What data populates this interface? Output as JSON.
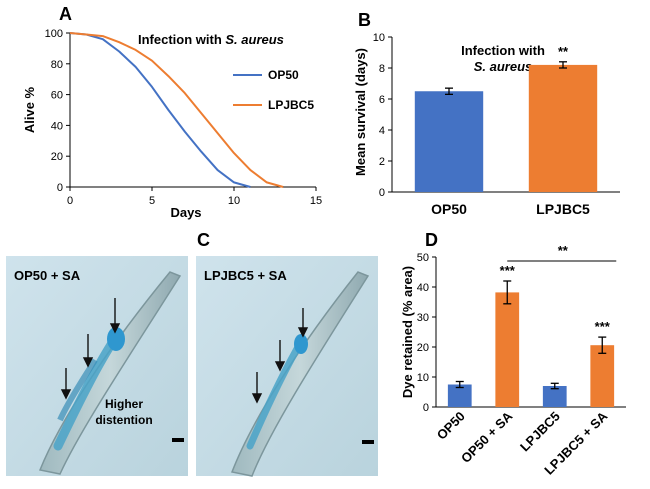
{
  "panels": {
    "A": "A",
    "B": "B",
    "C": "C",
    "D": "D"
  },
  "chart_data": [
    {
      "type": "line",
      "panel": "A",
      "title": "Infection with S. aureus",
      "title_prefix": "Infection with ",
      "title_italic": "S. aureus",
      "xlabel": "Days",
      "ylabel": "Alive %",
      "xlim": [
        0,
        15
      ],
      "ylim": [
        0,
        100
      ],
      "xticks": [
        0,
        5,
        10,
        15
      ],
      "yticks": [
        0,
        20,
        40,
        60,
        80,
        100
      ],
      "grid": false,
      "legend": "right",
      "series": [
        {
          "name": "OP50",
          "color": "#4472c4",
          "x": [
            0,
            1,
            2,
            3,
            4,
            5,
            6,
            7,
            8,
            9,
            10,
            11
          ],
          "y": [
            100,
            99,
            96,
            88,
            78,
            65,
            50,
            36,
            23,
            11,
            3,
            0
          ]
        },
        {
          "name": "LPJBC5",
          "color": "#ed7d31",
          "x": [
            0,
            1,
            2,
            3,
            4,
            5,
            6,
            7,
            8,
            9,
            10,
            11,
            12,
            13
          ],
          "y": [
            100,
            99,
            98,
            94,
            89,
            82,
            72,
            61,
            48,
            35,
            22,
            11,
            3,
            0
          ]
        }
      ]
    },
    {
      "type": "bar",
      "panel": "B",
      "title": "Infection with S. aureus",
      "title_line1": "Infection with",
      "title_line2": "S. aureus",
      "ylabel": "Mean survival (days)",
      "ylim": [
        0,
        10
      ],
      "yticks": [
        0,
        2,
        4,
        6,
        8,
        10
      ],
      "categories": [
        "OP50",
        "LPJBC5"
      ],
      "values": [
        6.5,
        8.2
      ],
      "errors": [
        0.2,
        0.2
      ],
      "colors": [
        "#4472c4",
        "#ed7d31"
      ],
      "annotations": [
        "",
        "**"
      ]
    },
    {
      "type": "bar",
      "panel": "D",
      "ylabel": "Dye retained (% area)",
      "ylim": [
        0,
        50
      ],
      "yticks": [
        0,
        10,
        20,
        30,
        40,
        50
      ],
      "categories": [
        "OP50",
        "OP50 + SA",
        "LPJBC5",
        "LPJBC5 + SA"
      ],
      "values": [
        7.5,
        38.2,
        7.0,
        20.6
      ],
      "errors": [
        1.0,
        3.8,
        0.9,
        2.7
      ],
      "colors": [
        "#4472c4",
        "#ed7d31",
        "#4472c4",
        "#ed7d31"
      ],
      "annotations": [
        "",
        "***",
        "",
        "***"
      ],
      "bracket_label": "**"
    }
  ],
  "images": {
    "left_label": "OP50 + SA",
    "right_label": "LPJBC5 + SA",
    "distention_label_1": "Higher",
    "distention_label_2": "distention"
  }
}
